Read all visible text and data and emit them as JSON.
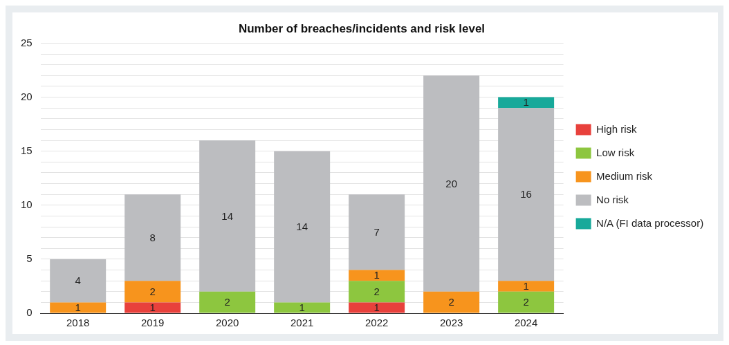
{
  "chart_data": {
    "type": "bar",
    "title": "Number of breaches/incidents and risk level",
    "categories": [
      "2018",
      "2019",
      "2020",
      "2021",
      "2022",
      "2023",
      "2024"
    ],
    "stacked": true,
    "data_labels": true,
    "legend": "right",
    "grid": "y",
    "ylim": [
      0,
      25
    ],
    "yticks": [
      0,
      {
        "value": 1,
        "label": null
      },
      {
        "value": 2,
        "label": null
      },
      {
        "value": 3,
        "label": null
      },
      {
        "value": 4,
        "label": null
      },
      5,
      {
        "value": 6,
        "label": null
      },
      {
        "value": 7,
        "label": null
      },
      {
        "value": 8,
        "label": null
      },
      {
        "value": 9,
        "label": null
      },
      10,
      {
        "value": 11,
        "label": null
      },
      {
        "value": 12,
        "label": null
      },
      {
        "value": 13,
        "label": null
      },
      {
        "value": 14,
        "label": null
      },
      15,
      {
        "value": 16,
        "label": null
      },
      {
        "value": 17,
        "label": null
      },
      {
        "value": 18,
        "label": null
      },
      {
        "value": 19,
        "label": null
      },
      20,
      {
        "value": 21,
        "label": null
      },
      {
        "value": 22,
        "label": null
      },
      {
        "value": 23,
        "label": null
      },
      {
        "value": 24,
        "label": null
      },
      25
    ],
    "series": [
      {
        "name": "High risk",
        "color": "#e8413c",
        "values": [
          null,
          1,
          null,
          null,
          1,
          null,
          null
        ]
      },
      {
        "name": "Low risk",
        "color": "#8dc63f",
        "values": [
          null,
          null,
          2,
          1,
          2,
          null,
          2
        ]
      },
      {
        "name": "Medium risk",
        "color": "#f7941d",
        "values": [
          1,
          2,
          null,
          null,
          1,
          2,
          1
        ]
      },
      {
        "name": "No risk",
        "color": "#bcbdc0",
        "values": [
          4,
          8,
          14,
          14,
          7,
          20,
          16
        ]
      },
      {
        "name": "N/A (FI data processor)",
        "color": "#17a99a",
        "values": [
          null,
          null,
          null,
          null,
          null,
          null,
          1
        ]
      }
    ]
  }
}
